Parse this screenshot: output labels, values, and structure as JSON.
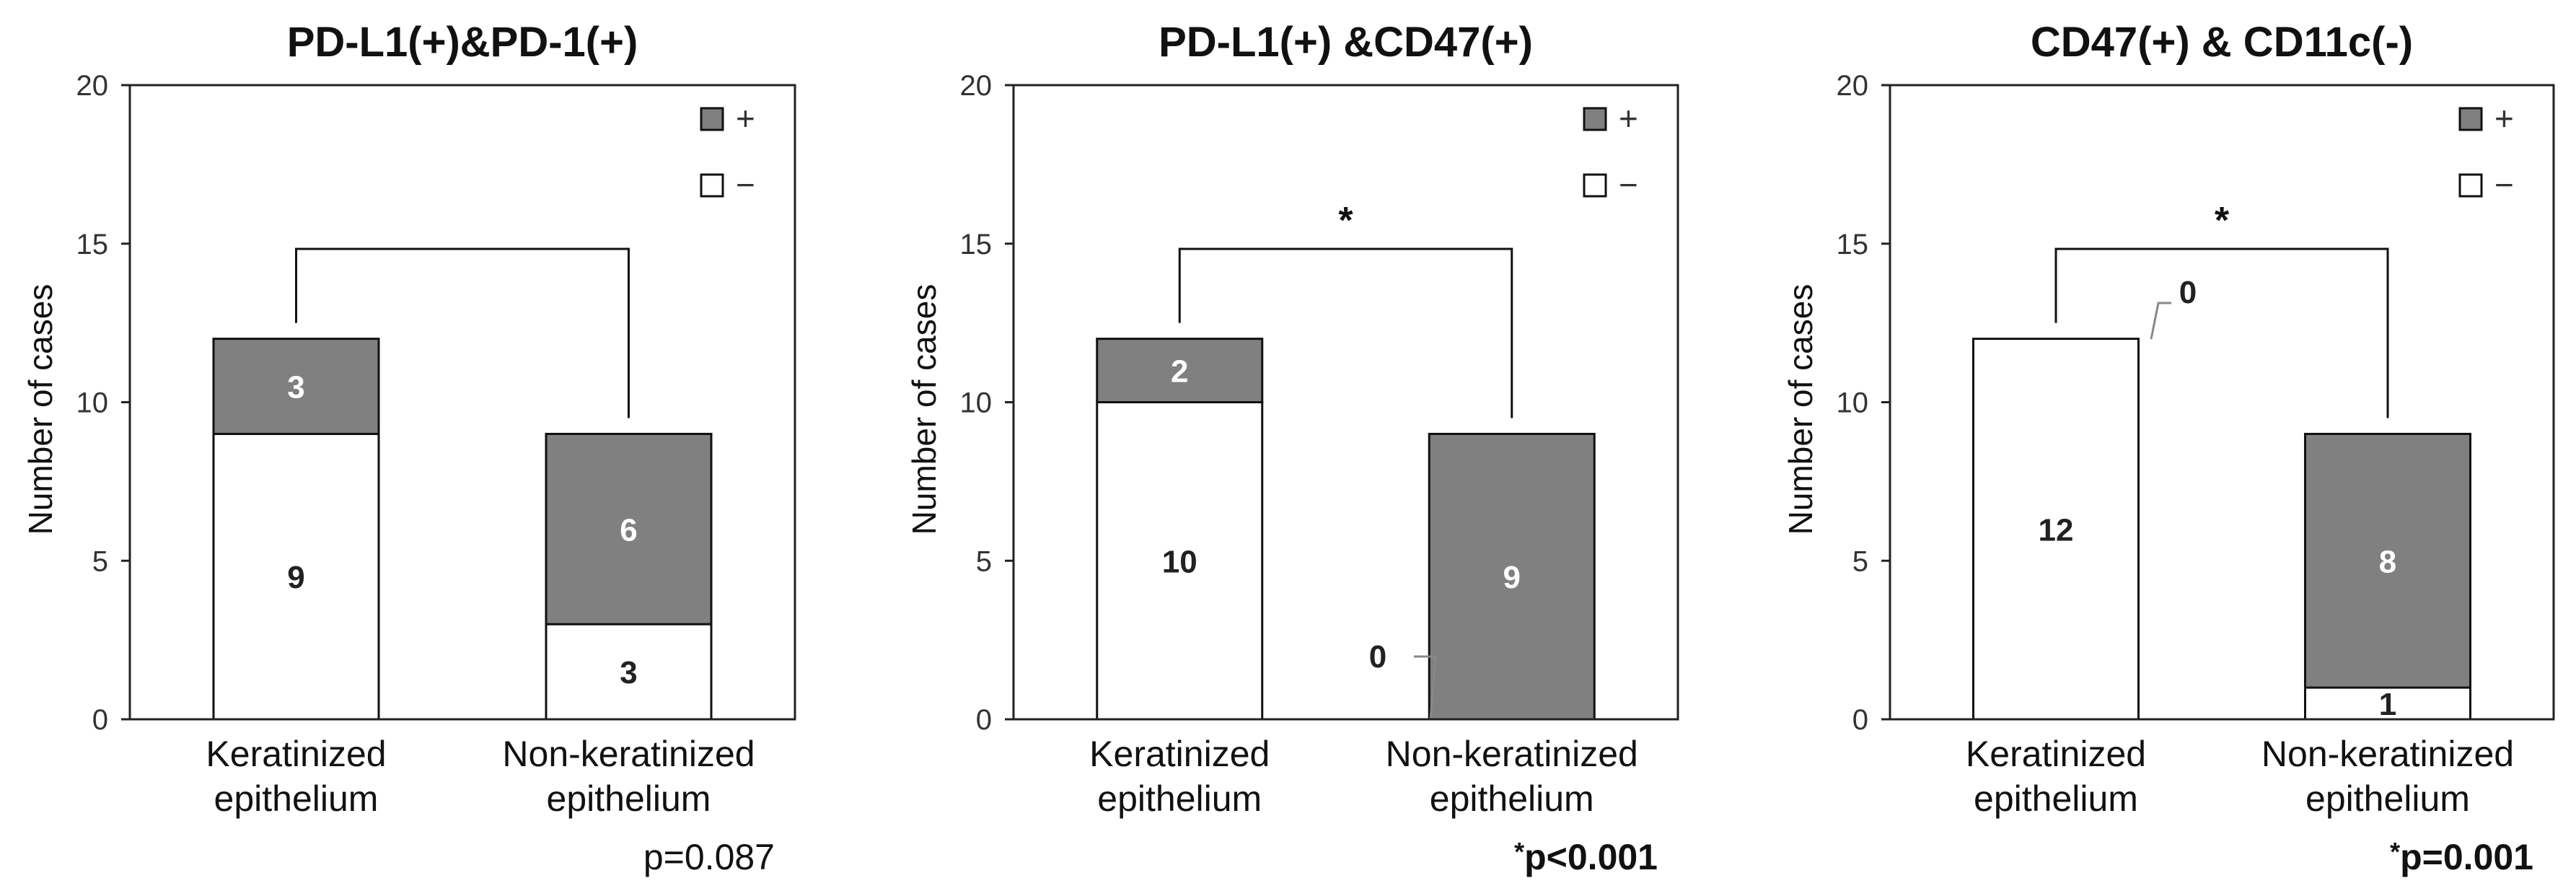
{
  "colors": {
    "positive": "#808080",
    "negative": "#ffffff",
    "axis": "#222222"
  },
  "legend": {
    "positive": "+",
    "negative": "−"
  },
  "chart_data": [
    {
      "type": "bar",
      "stacked": true,
      "title": "PD-L1(+)&PD-1(+)",
      "ylabel": "Number of cases",
      "ylim": [
        0,
        20
      ],
      "yticks": [
        "0",
        "5",
        "10",
        "15",
        "20"
      ],
      "categories": [
        [
          "Keratinized",
          "epithelium"
        ],
        [
          "Non-keratinized",
          "epithelium"
        ]
      ],
      "series": [
        {
          "name": "−",
          "values": [
            9,
            3
          ]
        },
        {
          "name": "+",
          "values": [
            3,
            6
          ]
        }
      ],
      "segment_labels": {
        "neg": [
          "9",
          "3"
        ],
        "pos": [
          "3",
          "6"
        ]
      },
      "significance_star": "",
      "p_value": {
        "prefix": "",
        "text": "p=0.087",
        "bold": false
      }
    },
    {
      "type": "bar",
      "stacked": true,
      "title": "PD-L1(+) &CD47(+)",
      "ylabel": "Number of cases",
      "ylim": [
        0,
        20
      ],
      "yticks": [
        "0",
        "5",
        "10",
        "15",
        "20"
      ],
      "categories": [
        [
          "Keratinized",
          "epithelium"
        ],
        [
          "Non-keratinized",
          "epithelium"
        ]
      ],
      "series": [
        {
          "name": "−",
          "values": [
            10,
            0
          ]
        },
        {
          "name": "+",
          "values": [
            2,
            9
          ]
        }
      ],
      "segment_labels": {
        "neg": [
          "10",
          "0"
        ],
        "pos": [
          "2",
          "9"
        ]
      },
      "significance_star": "*",
      "p_value": {
        "prefix": "*",
        "text": "p<0.001",
        "bold": true
      }
    },
    {
      "type": "bar",
      "stacked": true,
      "title": "CD47(+) & CD11c(-)",
      "ylabel": "Number of cases",
      "ylim": [
        0,
        20
      ],
      "yticks": [
        "0",
        "5",
        "10",
        "15",
        "20"
      ],
      "categories": [
        [
          "Keratinized",
          "epithelium"
        ],
        [
          "Non-keratinized",
          "epithelium"
        ]
      ],
      "series": [
        {
          "name": "−",
          "values": [
            12,
            1
          ]
        },
        {
          "name": "+",
          "values": [
            0,
            8
          ]
        }
      ],
      "segment_labels": {
        "neg": [
          "12",
          "1"
        ],
        "pos": [
          "0",
          "8"
        ]
      },
      "significance_star": "*",
      "p_value": {
        "prefix": "*",
        "text": "p=0.001",
        "bold": true
      }
    }
  ]
}
